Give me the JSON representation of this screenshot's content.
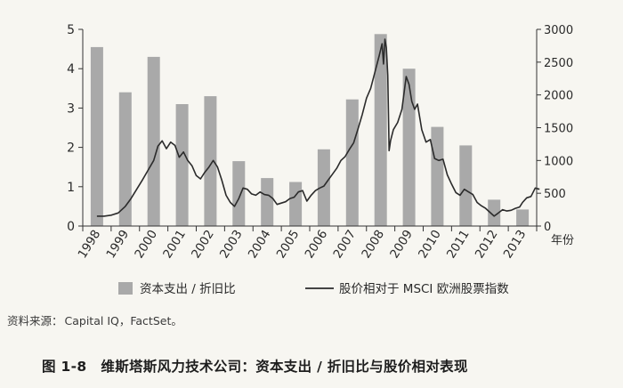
{
  "chart_data": {
    "type": "bar+line",
    "categories": [
      "1998",
      "1999",
      "2000",
      "2001",
      "2002",
      "2003",
      "2004",
      "2005",
      "2006",
      "2007",
      "2008",
      "2009",
      "2010",
      "2011",
      "2012",
      "2013"
    ],
    "series": [
      {
        "name": "资本支出 / 折旧比",
        "kind": "bar",
        "axis": "left",
        "values": [
          4.55,
          3.4,
          4.3,
          3.1,
          3.3,
          1.65,
          1.22,
          1.12,
          1.95,
          3.22,
          4.88,
          4.0,
          2.52,
          2.05,
          0.67,
          0.42
        ]
      },
      {
        "name": "股价相对于 MSCI 欧洲股票指数",
        "kind": "line",
        "axis": "right",
        "x": [
          1998.0,
          1998.25,
          1998.5,
          1998.75,
          1999.0,
          1999.2,
          1999.4,
          1999.6,
          1999.8,
          2000.0,
          2000.15,
          2000.3,
          2000.45,
          2000.6,
          2000.75,
          2000.9,
          2001.05,
          2001.2,
          2001.35,
          2001.5,
          2001.65,
          2001.8,
          2001.95,
          2002.1,
          2002.25,
          2002.4,
          2002.55,
          2002.7,
          2002.85,
          2003.0,
          2003.15,
          2003.3,
          2003.45,
          2003.6,
          2003.75,
          2003.9,
          2004.05,
          2004.2,
          2004.35,
          2004.5,
          2004.65,
          2004.8,
          2004.95,
          2005.1,
          2005.25,
          2005.4,
          2005.55,
          2005.7,
          2005.85,
          2006.0,
          2006.15,
          2006.3,
          2006.45,
          2006.6,
          2006.75,
          2006.9,
          2007.05,
          2007.2,
          2007.35,
          2007.5,
          2007.65,
          2007.8,
          2007.95,
          2008.05,
          2008.1,
          2008.15,
          2008.2,
          2008.25,
          2008.3,
          2008.35,
          2008.45,
          2008.6,
          2008.75,
          2008.9,
          2009.0,
          2009.1,
          2009.2,
          2009.3,
          2009.45,
          2009.6,
          2009.75,
          2009.9,
          2010.05,
          2010.2,
          2010.35,
          2010.5,
          2010.65,
          2010.8,
          2010.95,
          2011.1,
          2011.25,
          2011.4,
          2011.55,
          2011.7,
          2011.85,
          2012.0,
          2012.15,
          2012.3,
          2012.45,
          2012.6,
          2012.75,
          2012.9,
          2013.0,
          2013.15,
          2013.3,
          2013.45,
          2013.6
        ],
        "values": [
          150,
          150,
          165,
          200,
          300,
          420,
          560,
          700,
          850,
          1000,
          1220,
          1300,
          1180,
          1280,
          1230,
          1050,
          1130,
          1000,
          920,
          770,
          720,
          820,
          900,
          1000,
          900,
          700,
          470,
          360,
          300,
          420,
          580,
          560,
          490,
          470,
          520,
          480,
          470,
          420,
          330,
          350,
          370,
          420,
          440,
          520,
          540,
          380,
          470,
          540,
          580,
          610,
          700,
          790,
          880,
          1000,
          1060,
          1170,
          1270,
          1480,
          1700,
          1950,
          2100,
          2350,
          2600,
          2780,
          2470,
          2850,
          2720,
          2300,
          1150,
          1300,
          1470,
          1580,
          1780,
          2280,
          2160,
          1900,
          1780,
          1860,
          1470,
          1280,
          1320,
          1030,
          1000,
          1020,
          780,
          640,
          510,
          470,
          560,
          520,
          480,
          360,
          310,
          270,
          210,
          150,
          200,
          250,
          230,
          240,
          270,
          290,
          360,
          430,
          450,
          580,
          560
        ]
      }
    ],
    "y_left": {
      "ticks": [
        0,
        1,
        2,
        3,
        4,
        5
      ],
      "ylim": [
        0,
        5
      ]
    },
    "y_right": {
      "ticks": [
        0,
        500,
        1000,
        1500,
        2000,
        2500,
        3000
      ],
      "ylim": [
        0,
        3000
      ],
      "unit_label": "年份"
    },
    "legend_placement": "bottom",
    "colors": {
      "bar": "#a9a9a9",
      "line": "#2b2b2b",
      "axis": "#333333"
    }
  },
  "source": {
    "label": "资料来源：",
    "text": "Capital IQ，FactSet。"
  },
  "caption": {
    "number": "图 1-8",
    "title": "维斯塔斯风力技术公司：资本支出 / 折旧比与股价相对表现"
  }
}
